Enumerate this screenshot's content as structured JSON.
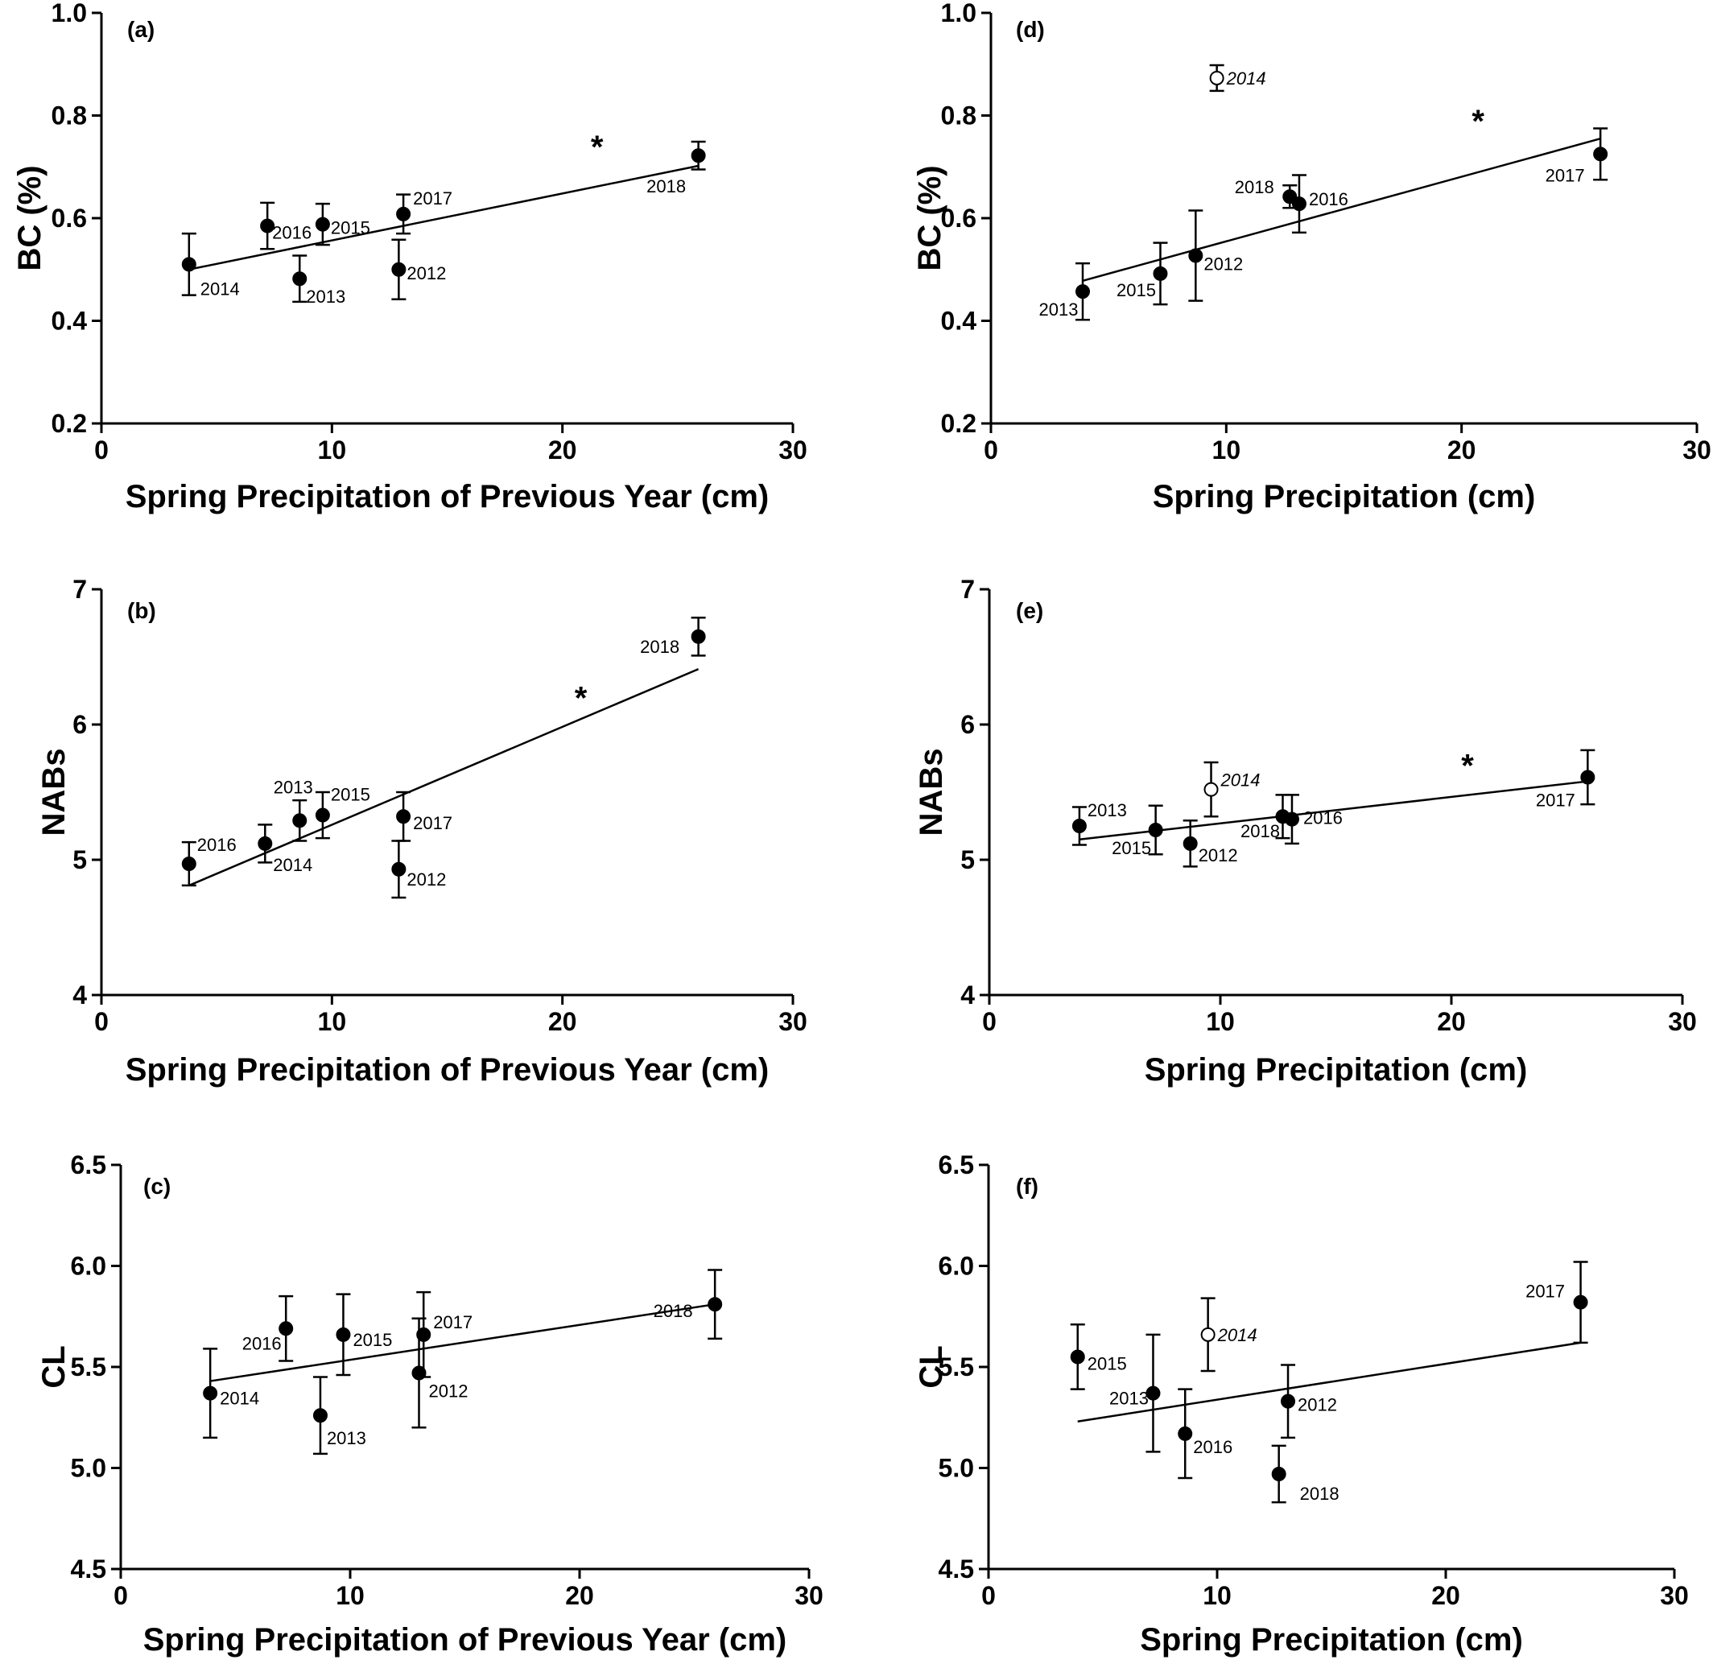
{
  "chart_data": [
    {
      "panel": "(a)",
      "type": "scatter",
      "xlabel": "Spring Precipitation of Previous Year (cm)",
      "ylabel": "BC (%)",
      "xlim": [
        0,
        30
      ],
      "ylim": [
        0.2,
        1.0
      ],
      "xticks": [
        "0",
        "10",
        "20",
        "30"
      ],
      "yticks": [
        "0.2",
        "0.4",
        "0.6",
        "0.8",
        "1.0"
      ],
      "points": [
        {
          "label": "2014",
          "x": 3.8,
          "y": 0.51,
          "err": 0.06,
          "filled": true
        },
        {
          "label": "2016",
          "x": 7.2,
          "y": 0.585,
          "err": 0.045,
          "filled": true
        },
        {
          "label": "2013",
          "x": 8.6,
          "y": 0.482,
          "err": 0.045,
          "filled": true
        },
        {
          "label": "2015",
          "x": 9.6,
          "y": 0.588,
          "err": 0.04,
          "filled": true
        },
        {
          "label": "2012",
          "x": 12.9,
          "y": 0.5,
          "err": 0.058,
          "filled": true
        },
        {
          "label": "2017",
          "x": 13.1,
          "y": 0.608,
          "err": 0.038,
          "filled": true
        },
        {
          "label": "2018",
          "x": 25.9,
          "y": 0.722,
          "err": 0.027,
          "filled": true
        }
      ],
      "trendline": {
        "x": [
          3.8,
          25.9
        ],
        "y": [
          0.5,
          0.702
        ]
      },
      "annotation": {
        "text": "*",
        "x": 21.5,
        "y": 0.74
      }
    },
    {
      "panel": "(b)",
      "type": "scatter",
      "xlabel": "Spring Precipitation of Previous Year (cm)",
      "ylabel": "NABs",
      "xlim": [
        0,
        30
      ],
      "ylim": [
        4,
        7
      ],
      "xticks": [
        "0",
        "10",
        "20",
        "30"
      ],
      "yticks": [
        "4",
        "5",
        "6",
        "7"
      ],
      "points": [
        {
          "label": "2016",
          "x": 3.8,
          "y": 4.97,
          "err": 0.16,
          "filled": true
        },
        {
          "label": "2014",
          "x": 7.1,
          "y": 5.12,
          "err": 0.14,
          "filled": true
        },
        {
          "label": "2013",
          "x": 8.6,
          "y": 5.29,
          "err": 0.15,
          "filled": true
        },
        {
          "label": "2015",
          "x": 9.6,
          "y": 5.33,
          "err": 0.17,
          "filled": true
        },
        {
          "label": "2012",
          "x": 12.9,
          "y": 4.93,
          "err": 0.21,
          "filled": true
        },
        {
          "label": "2017",
          "x": 13.1,
          "y": 5.32,
          "err": 0.18,
          "filled": true
        },
        {
          "label": "2018",
          "x": 25.9,
          "y": 6.65,
          "err": 0.14,
          "filled": true
        }
      ],
      "trendline": {
        "x": [
          3.8,
          25.9
        ],
        "y": [
          4.81,
          6.41
        ]
      },
      "annotation": {
        "text": "*",
        "x": 20.8,
        "y": 6.2
      }
    },
    {
      "panel": "(c)",
      "type": "scatter",
      "xlabel": "Spring Precipitation of Previous Year (cm)",
      "ylabel": "CL",
      "xlim": [
        0,
        30
      ],
      "ylim": [
        4.5,
        6.5
      ],
      "xticks": [
        "0",
        "10",
        "20",
        "30"
      ],
      "yticks": [
        "4.5",
        "5.0",
        "5.5",
        "6.0",
        "6.5"
      ],
      "points": [
        {
          "label": "2014",
          "x": 3.9,
          "y": 5.37,
          "err": 0.22,
          "filled": true
        },
        {
          "label": "2016",
          "x": 7.2,
          "y": 5.69,
          "err": 0.16,
          "filled": true
        },
        {
          "label": "2013",
          "x": 8.7,
          "y": 5.26,
          "err": 0.19,
          "filled": true
        },
        {
          "label": "2015",
          "x": 9.7,
          "y": 5.66,
          "err": 0.2,
          "filled": true
        },
        {
          "label": "2012",
          "x": 13.0,
          "y": 5.47,
          "err": 0.27,
          "filled": true
        },
        {
          "label": "2017",
          "x": 13.2,
          "y": 5.66,
          "err": 0.21,
          "filled": true
        },
        {
          "label": "2018",
          "x": 25.9,
          "y": 5.81,
          "err": 0.17,
          "filled": true
        }
      ],
      "trendline": {
        "x": [
          3.9,
          25.9
        ],
        "y": [
          5.43,
          5.81
        ]
      }
    },
    {
      "panel": "(d)",
      "type": "scatter",
      "xlabel": "Spring Precipitation (cm)",
      "ylabel": "BC (%)",
      "xlim": [
        0,
        30
      ],
      "ylim": [
        0.2,
        1.0
      ],
      "xticks": [
        "0",
        "10",
        "20",
        "30"
      ],
      "yticks": [
        "0.2",
        "0.4",
        "0.6",
        "0.8",
        "1.0"
      ],
      "points": [
        {
          "label": "2013",
          "x": 3.9,
          "y": 0.457,
          "err": 0.055,
          "filled": true
        },
        {
          "label": "2015",
          "x": 7.2,
          "y": 0.492,
          "err": 0.06,
          "filled": true
        },
        {
          "label": "2014",
          "x": 9.6,
          "y": 0.873,
          "err": 0.025,
          "filled": false
        },
        {
          "label": "2012",
          "x": 8.7,
          "y": 0.527,
          "err": 0.088,
          "filled": true
        },
        {
          "label": "2018",
          "x": 12.7,
          "y": 0.642,
          "err": 0.022,
          "filled": true
        },
        {
          "label": "2016",
          "x": 13.1,
          "y": 0.628,
          "err": 0.056,
          "filled": true
        },
        {
          "label": "2017",
          "x": 25.9,
          "y": 0.725,
          "err": 0.05,
          "filled": true
        }
      ],
      "trendline": {
        "x": [
          3.9,
          25.9
        ],
        "y": [
          0.478,
          0.755
        ]
      },
      "annotation": {
        "text": "*",
        "x": 20.7,
        "y": 0.79
      }
    },
    {
      "panel": "(e)",
      "type": "scatter",
      "xlabel": "Spring Precipitation (cm)",
      "ylabel": "NABs",
      "xlim": [
        0,
        30
      ],
      "ylim": [
        4,
        7
      ],
      "xticks": [
        "0",
        "10",
        "20",
        "30"
      ],
      "yticks": [
        "4",
        "5",
        "6",
        "7"
      ],
      "points": [
        {
          "label": "2013",
          "x": 3.9,
          "y": 5.25,
          "err": 0.14,
          "filled": true
        },
        {
          "label": "2015",
          "x": 7.2,
          "y": 5.22,
          "err": 0.18,
          "filled": true
        },
        {
          "label": "2014",
          "x": 9.6,
          "y": 5.52,
          "err": 0.2,
          "filled": false
        },
        {
          "label": "2012",
          "x": 8.7,
          "y": 5.12,
          "err": 0.17,
          "filled": true
        },
        {
          "label": "2018",
          "x": 12.7,
          "y": 5.32,
          "err": 0.16,
          "filled": true
        },
        {
          "label": "2016",
          "x": 13.1,
          "y": 5.3,
          "err": 0.18,
          "filled": true
        },
        {
          "label": "2017",
          "x": 25.9,
          "y": 5.61,
          "err": 0.2,
          "filled": true
        }
      ],
      "trendline": {
        "x": [
          3.9,
          25.9
        ],
        "y": [
          5.15,
          5.58
        ]
      },
      "annotation": {
        "text": "*",
        "x": 20.7,
        "y": 5.7
      }
    },
    {
      "panel": "(f)",
      "type": "scatter",
      "xlabel": "Spring Precipitation (cm)",
      "ylabel": "CL",
      "xlim": [
        0,
        30
      ],
      "ylim": [
        4.5,
        6.5
      ],
      "xticks": [
        "0",
        "10",
        "20",
        "30"
      ],
      "yticks": [
        "4.5",
        "5.0",
        "5.5",
        "6.0",
        "6.5"
      ],
      "points": [
        {
          "label": "2015",
          "x": 3.9,
          "y": 5.55,
          "err": 0.16,
          "filled": true
        },
        {
          "label": "2013",
          "x": 7.2,
          "y": 5.37,
          "err": 0.29,
          "filled": true
        },
        {
          "label": "2014",
          "x": 9.6,
          "y": 5.66,
          "err": 0.18,
          "filled": false
        },
        {
          "label": "2016",
          "x": 8.6,
          "y": 5.17,
          "err": 0.22,
          "filled": true
        },
        {
          "label": "2012",
          "x": 13.1,
          "y": 5.33,
          "err": 0.18,
          "filled": true
        },
        {
          "label": "2018",
          "x": 12.7,
          "y": 4.97,
          "err": 0.14,
          "filled": true
        },
        {
          "label": "2017",
          "x": 25.9,
          "y": 5.82,
          "err": 0.2,
          "filled": true
        }
      ],
      "trendline": {
        "x": [
          3.9,
          25.9
        ],
        "y": [
          5.23,
          5.62
        ]
      }
    }
  ]
}
